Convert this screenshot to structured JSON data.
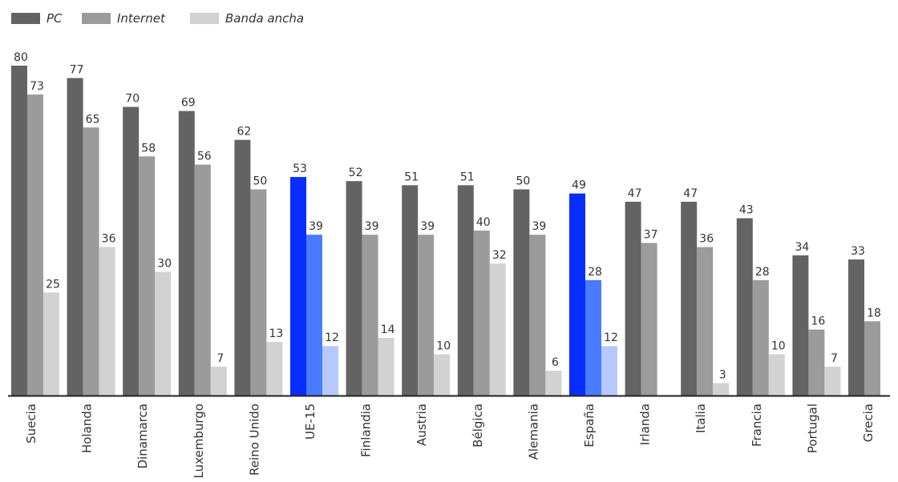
{
  "colors": {
    "pc": "#636363",
    "internet": "#9b9b9b",
    "banda": "#d2d2d2",
    "pc_highlight": "#0a2dff",
    "internet_highlight": "#4a7bff",
    "banda_highlight": "#b7c8ff",
    "axis": "#222222"
  },
  "chart_data": {
    "type": "bar",
    "grid": false,
    "legend_position": "top-left",
    "ylim": [
      0,
      80
    ],
    "categories": [
      "Suecia",
      "Holanda",
      "Dinamarca",
      "Luxemburgo",
      "Reino Unido",
      "UE-15",
      "Finlandia",
      "Austria",
      "Bélgica",
      "Alemania",
      "España",
      "Irlanda",
      "Italia",
      "Francia",
      "Portugal",
      "Grecia"
    ],
    "highlighted": [
      "UE-15",
      "España"
    ],
    "series": [
      {
        "name": "PC",
        "values": [
          80,
          77,
          70,
          69,
          62,
          53,
          52,
          51,
          51,
          50,
          49,
          47,
          47,
          43,
          34,
          33
        ]
      },
      {
        "name": "Internet",
        "values": [
          73,
          65,
          58,
          56,
          50,
          39,
          39,
          39,
          40,
          39,
          28,
          37,
          36,
          28,
          16,
          18
        ]
      },
      {
        "name": "Banda ancha",
        "values": [
          25,
          36,
          30,
          7,
          13,
          12,
          14,
          10,
          32,
          6,
          12,
          null,
          3,
          10,
          7,
          null
        ]
      }
    ]
  }
}
